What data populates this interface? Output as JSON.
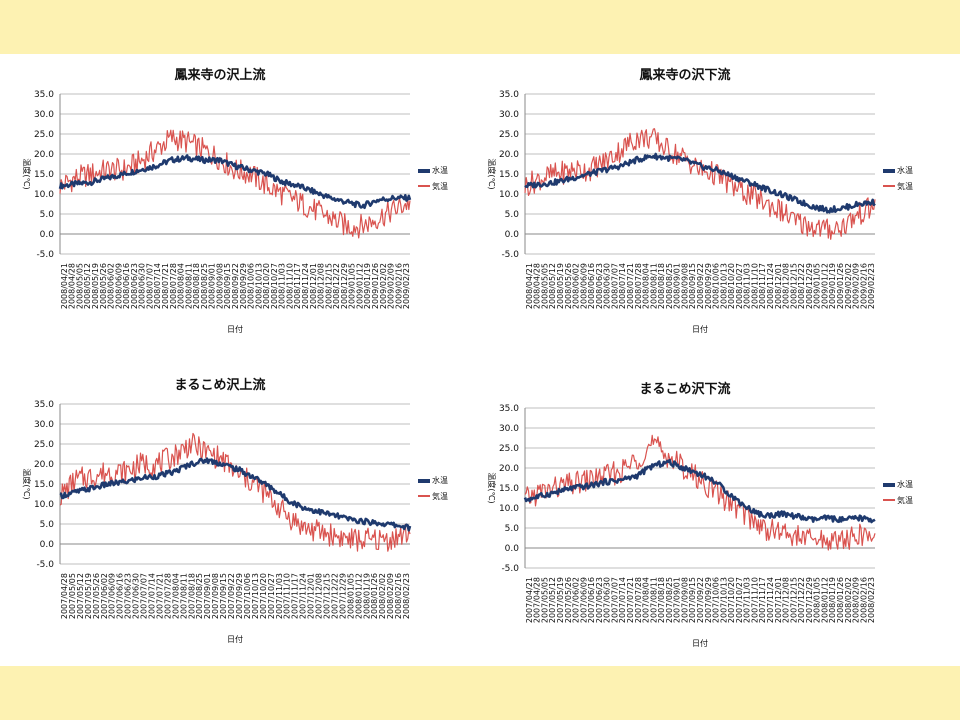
{
  "chart_data": [
    {
      "type": "line",
      "title": "鳳来寺の沢上流",
      "xlabel": "日付",
      "ylabel": "温度(℃)",
      "ylim": [
        -5,
        35
      ],
      "yticks": [
        "-5.0",
        "0.0",
        "5.0",
        "10.0",
        "15.0",
        "20.0",
        "25.0",
        "30.0",
        "35.0"
      ],
      "x_tick_labels": [
        "2008/04/21",
        "2008/04/28",
        "2008/05/05",
        "2008/05/12",
        "2008/05/19",
        "2008/05/26",
        "2008/06/02",
        "2008/06/09",
        "2008/06/16",
        "2008/06/23",
        "2008/06/30",
        "2008/07/07",
        "2008/07/14",
        "2008/07/21",
        "2008/07/28",
        "2008/08/04",
        "2008/08/11",
        "2008/08/18",
        "2008/08/25",
        "2008/09/01",
        "2008/09/08",
        "2008/09/15",
        "2008/09/22",
        "2008/09/29",
        "2008/10/06",
        "2008/10/13",
        "2008/10/20",
        "2008/10/27",
        "2008/11/03",
        "2008/11/10",
        "2008/11/17",
        "2008/11/24",
        "2008/12/01",
        "2008/12/08",
        "2008/12/15",
        "2008/12/22",
        "2008/12/29",
        "2009/01/05",
        "2009/01/12",
        "2009/01/19",
        "2009/01/26",
        "2009/02/02",
        "2009/02/09",
        "2009/02/16",
        "2009/02/23"
      ],
      "x_dates": [
        "2008/04/21",
        "2008/05/05",
        "2008/05/19",
        "2008/06/02",
        "2008/06/16",
        "2008/06/30",
        "2008/07/14",
        "2008/07/28",
        "2008/08/11",
        "2008/08/25",
        "2008/09/08",
        "2008/09/22",
        "2008/10/06",
        "2008/10/20",
        "2008/11/03",
        "2008/11/17",
        "2008/12/01",
        "2008/12/15",
        "2008/12/29",
        "2009/01/12",
        "2009/01/26",
        "2009/02/09",
        "2009/02/23"
      ],
      "legend_position": "right",
      "series": [
        {
          "name": "水温",
          "color": "#1f3a6e",
          "values": [
            12,
            12.5,
            13,
            14,
            15,
            16,
            17,
            18.5,
            19,
            18.5,
            18.5,
            17,
            16,
            15,
            13,
            12,
            10.5,
            9,
            8,
            7,
            8.5,
            9,
            9
          ]
        },
        {
          "name": "気温",
          "color": "#d9534f",
          "values": [
            12,
            14,
            15,
            16,
            16,
            18,
            21,
            24,
            23,
            21,
            19,
            16,
            15,
            12,
            10,
            8,
            6,
            4,
            2,
            2,
            4,
            6,
            8
          ]
        }
      ]
    },
    {
      "type": "line",
      "title": "鳳来寺の沢下流",
      "xlabel": "日付",
      "ylabel": "温度(℃)",
      "ylim": [
        -5,
        35
      ],
      "yticks": [
        "-5.0",
        "0.0",
        "5.0",
        "10.0",
        "15.0",
        "20.0",
        "25.0",
        "30.0",
        "35.0"
      ],
      "x_tick_labels": [
        "2008/04/21",
        "2008/04/28",
        "2008/05/05",
        "2008/05/12",
        "2008/05/19",
        "2008/05/26",
        "2008/06/02",
        "2008/06/09",
        "2008/06/16",
        "2008/06/23",
        "2008/06/30",
        "2008/07/07",
        "2008/07/14",
        "2008/07/21",
        "2008/07/28",
        "2008/08/04",
        "2008/08/11",
        "2008/08/18",
        "2008/08/25",
        "2008/09/01",
        "2008/09/08",
        "2008/09/15",
        "2008/09/22",
        "2008/09/29",
        "2008/10/06",
        "2008/10/13",
        "2008/10/20",
        "2008/10/27",
        "2008/11/03",
        "2008/11/10",
        "2008/11/17",
        "2008/11/24",
        "2008/12/01",
        "2008/12/08",
        "2008/12/15",
        "2008/12/22",
        "2008/12/29",
        "2009/01/05",
        "2009/01/12",
        "2009/01/19",
        "2009/01/26",
        "2009/02/02",
        "2009/02/09",
        "2009/02/16",
        "2009/02/23"
      ],
      "x_dates": [
        "2008/04/21",
        "2008/05/05",
        "2008/05/19",
        "2008/06/02",
        "2008/06/16",
        "2008/06/30",
        "2008/07/14",
        "2008/07/28",
        "2008/08/11",
        "2008/08/25",
        "2008/09/08",
        "2008/09/22",
        "2008/10/06",
        "2008/10/20",
        "2008/11/03",
        "2008/11/17",
        "2008/12/01",
        "2008/12/15",
        "2008/12/29",
        "2009/01/12",
        "2009/01/26",
        "2009/02/09",
        "2009/02/23"
      ],
      "legend_position": "right",
      "series": [
        {
          "name": "水温",
          "color": "#1f3a6e",
          "values": [
            12,
            12.5,
            13,
            14,
            15,
            16,
            17,
            18.5,
            19.5,
            19,
            18.5,
            17,
            16,
            14.5,
            13,
            11.5,
            10,
            8.5,
            7,
            6,
            6.5,
            7.5,
            8
          ]
        },
        {
          "name": "気温",
          "color": "#d9534f",
          "values": [
            12,
            14,
            15,
            16,
            16,
            18,
            21,
            24,
            24,
            21,
            19,
            16,
            15,
            12,
            10,
            8,
            6,
            3,
            2,
            1,
            2,
            5,
            7
          ]
        }
      ]
    },
    {
      "type": "line",
      "title": "まるこめ沢上流",
      "xlabel": "日付",
      "ylabel": "温度(℃)",
      "ylim": [
        -5,
        35
      ],
      "yticks": [
        "-5.0",
        "0.0",
        "5.0",
        "10.0",
        "15.0",
        "20.0",
        "25.0",
        "30.0",
        "35.0"
      ],
      "x_tick_labels": [
        "2007/04/28",
        "2007/05/05",
        "2007/05/12",
        "2007/05/19",
        "2007/05/26",
        "2007/06/02",
        "2007/06/09",
        "2007/06/16",
        "2007/06/23",
        "2007/06/30",
        "2007/07/07",
        "2007/07/14",
        "2007/07/21",
        "2007/07/28",
        "2007/08/04",
        "2007/08/11",
        "2007/08/18",
        "2007/08/25",
        "2007/09/01",
        "2007/09/08",
        "2007/09/15",
        "2007/09/22",
        "2007/09/29",
        "2007/10/06",
        "2007/10/13",
        "2007/10/20",
        "2007/10/27",
        "2007/11/03",
        "2007/11/10",
        "2007/11/17",
        "2007/11/24",
        "2007/12/01",
        "2007/12/08",
        "2007/12/15",
        "2007/12/22",
        "2007/12/29",
        "2008/01/05",
        "2008/01/12",
        "2008/01/19",
        "2008/01/26",
        "2008/02/02",
        "2008/02/09",
        "2008/02/16",
        "2008/02/23"
      ],
      "x_dates": [
        "2007/04/28",
        "2007/05/12",
        "2007/05/26",
        "2007/06/09",
        "2007/06/23",
        "2007/07/07",
        "2007/07/21",
        "2007/08/04",
        "2007/08/18",
        "2007/09/01",
        "2007/09/15",
        "2007/09/29",
        "2007/10/13",
        "2007/10/27",
        "2007/11/10",
        "2007/11/24",
        "2007/12/08",
        "2007/12/22",
        "2008/01/05",
        "2008/01/19",
        "2008/02/02",
        "2008/02/16",
        "2008/02/23"
      ],
      "legend_position": "right",
      "series": [
        {
          "name": "水温",
          "color": "#1f3a6e",
          "values": [
            12,
            13,
            14,
            15,
            15.5,
            16.5,
            17,
            18,
            20,
            21,
            20,
            18.5,
            16.5,
            14,
            11,
            9,
            8,
            7,
            6,
            5.5,
            5,
            4.5,
            4
          ]
        },
        {
          "name": "気温",
          "color": "#d9534f",
          "values": [
            12,
            16,
            17,
            18,
            18,
            20,
            20,
            22,
            25,
            23,
            21,
            17,
            15,
            11,
            7,
            4,
            3,
            2,
            1,
            1,
            1,
            2,
            3
          ]
        }
      ]
    },
    {
      "type": "line",
      "title": "まるこめ沢下流",
      "xlabel": "日付",
      "ylabel": "温度(℃)",
      "ylim": [
        -5,
        35
      ],
      "yticks": [
        "-5.0",
        "0.0",
        "5.0",
        "10.0",
        "15.0",
        "20.0",
        "25.0",
        "30.0",
        "35.0"
      ],
      "x_tick_labels": [
        "2007/04/21",
        "2007/04/28",
        "2007/05/05",
        "2007/05/12",
        "2007/05/19",
        "2007/05/26",
        "2007/06/02",
        "2007/06/09",
        "2007/06/16",
        "2007/06/23",
        "2007/06/30",
        "2007/07/07",
        "2007/07/14",
        "2007/07/21",
        "2007/07/28",
        "2007/08/04",
        "2007/08/11",
        "2007/08/18",
        "2007/08/25",
        "2007/09/01",
        "2007/09/08",
        "2007/09/15",
        "2007/09/22",
        "2007/09/29",
        "2007/10/06",
        "2007/10/13",
        "2007/10/20",
        "2007/10/27",
        "2007/11/03",
        "2007/11/10",
        "2007/11/17",
        "2007/11/24",
        "2007/12/01",
        "2007/12/08",
        "2007/12/15",
        "2007/12/22",
        "2007/12/29",
        "2008/01/05",
        "2008/01/12",
        "2008/01/19",
        "2008/01/26",
        "2008/02/02",
        "2008/02/09",
        "2008/02/16",
        "2008/02/23"
      ],
      "x_dates": [
        "2007/04/21",
        "2007/05/05",
        "2007/05/19",
        "2007/06/02",
        "2007/06/16",
        "2007/06/30",
        "2007/07/14",
        "2007/07/28",
        "2007/08/11",
        "2007/08/25",
        "2007/09/08",
        "2007/09/22",
        "2007/10/06",
        "2007/10/20",
        "2007/11/03",
        "2007/11/17",
        "2007/12/01",
        "2007/12/15",
        "2007/12/29",
        "2008/01/12",
        "2008/01/26",
        "2008/02/09",
        "2008/02/23"
      ],
      "legend_position": "right",
      "series": [
        {
          "name": "水温",
          "color": "#1f3a6e",
          "values": [
            12,
            13,
            14,
            15,
            15.5,
            16.5,
            17,
            18,
            20.5,
            21.5,
            20,
            18.5,
            16.5,
            13,
            10,
            8,
            8.5,
            8,
            7,
            7.5,
            7,
            7.5,
            7
          ]
        },
        {
          "name": "気温",
          "color": "#d9534f",
          "values": [
            12,
            14,
            15,
            16,
            17,
            18,
            19,
            22,
            26,
            23,
            20,
            17,
            14,
            11,
            8,
            5,
            4,
            3,
            2,
            2,
            2,
            3,
            3
          ]
        }
      ]
    }
  ]
}
